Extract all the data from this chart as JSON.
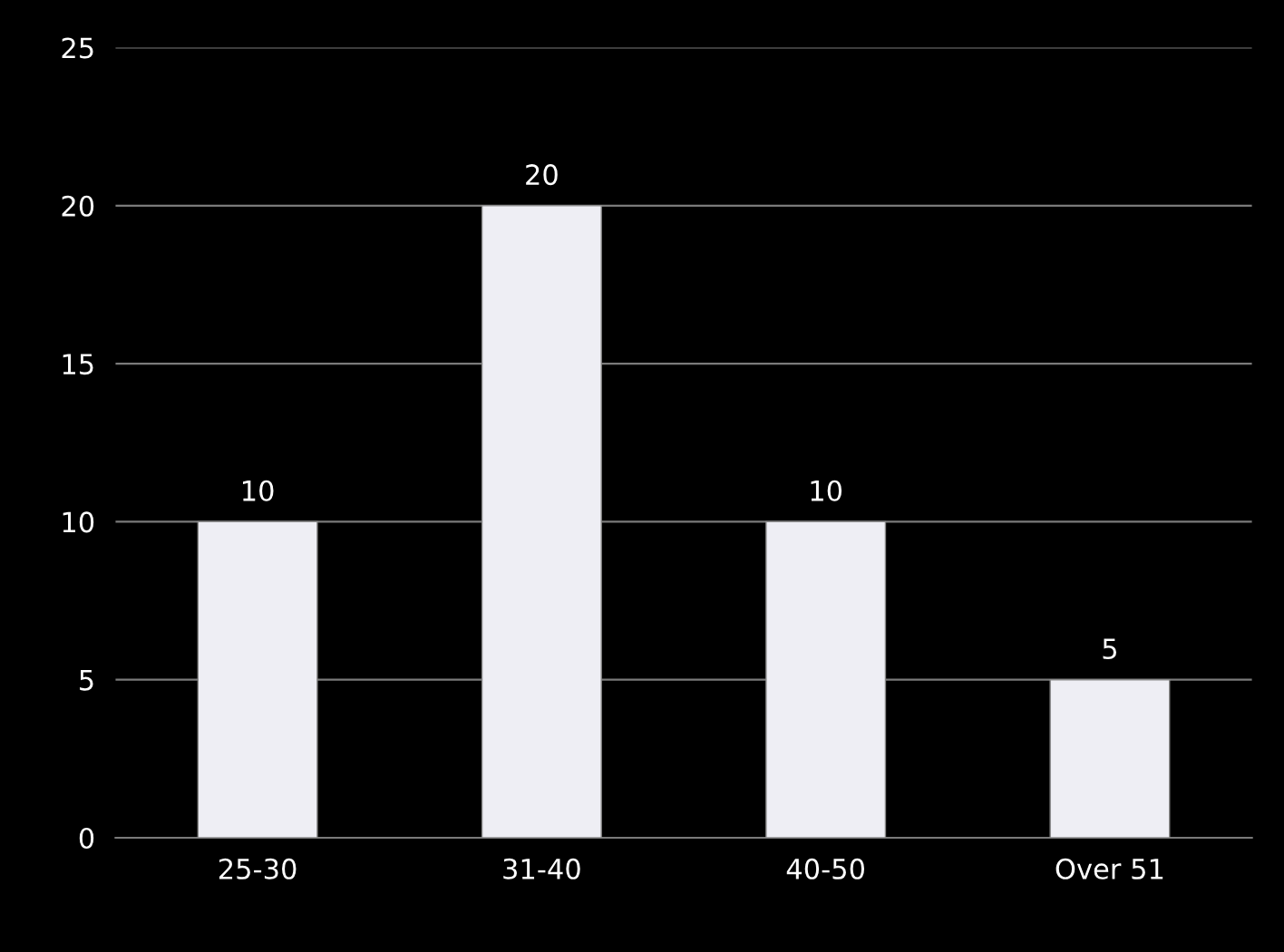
{
  "chart_data": {
    "type": "bar",
    "categories": [
      "25-30",
      "31-40",
      "40-50",
      "Over 51"
    ],
    "values": [
      10,
      20,
      10,
      5
    ],
    "color": "#eeeef4",
    "ylim": [
      0,
      25
    ],
    "yticks": [
      0,
      5,
      10,
      15,
      20,
      25
    ],
    "grid": "y",
    "data_labels": true
  }
}
